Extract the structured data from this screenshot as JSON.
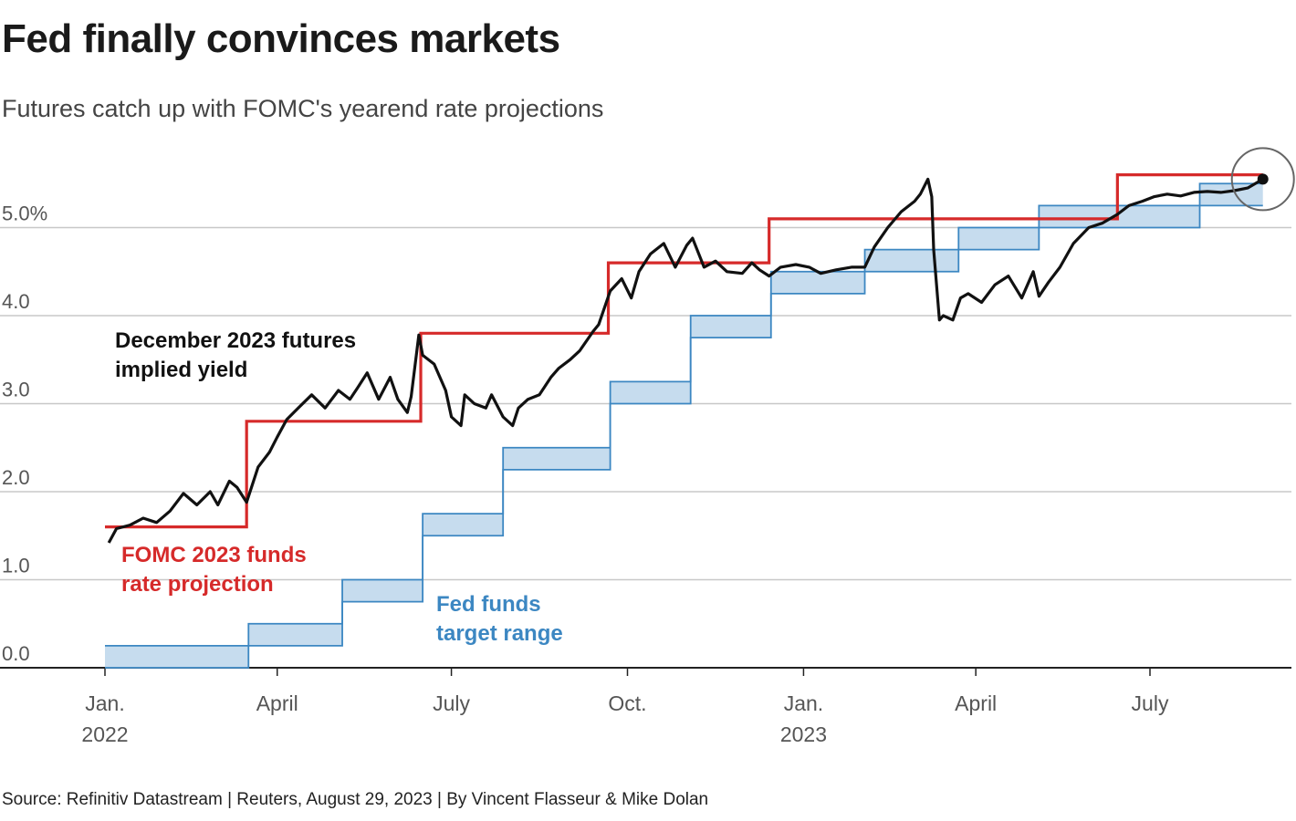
{
  "title": "Fed finally convinces markets",
  "subtitle": "Futures catch up with FOMC's yearend rate projections",
  "source": "Source: Refinitiv Datastream | Reuters, August 29, 2023 | By Vincent Flasseur & Mike Dolan",
  "colors": {
    "futures": "#111111",
    "projection": "#d62a2a",
    "target_range_line": "#3c87c2",
    "target_range_fill": "#c6dcee",
    "grid": "#c8c8c8"
  },
  "chart_data": {
    "type": "line",
    "x_axis": {
      "ticks": [
        {
          "date": "2022-01-01",
          "label": "Jan.",
          "label2": "2022"
        },
        {
          "date": "2022-04-01",
          "label": "April",
          "label2": ""
        },
        {
          "date": "2022-07-01",
          "label": "July",
          "label2": ""
        },
        {
          "date": "2022-10-01",
          "label": "Oct.",
          "label2": ""
        },
        {
          "date": "2023-01-01",
          "label": "Jan.",
          "label2": "2023"
        },
        {
          "date": "2023-04-01",
          "label": "April",
          "label2": ""
        },
        {
          "date": "2023-07-01",
          "label": "July",
          "label2": ""
        }
      ],
      "range": [
        "2021-12-31",
        "2023-09-30"
      ]
    },
    "y_axis": {
      "ticks": [
        0,
        1,
        2,
        3,
        4,
        5
      ],
      "tick_labels": [
        "0.0",
        "1.0",
        "2.0",
        "3.0",
        "4.0",
        "5.0%"
      ],
      "range": [
        0,
        5.9
      ],
      "grid": true
    },
    "series": [
      {
        "name": "FOMC 2023 funds rate projection",
        "label_lines": [
          "FOMC 2023 funds",
          "rate projection"
        ],
        "style": "step",
        "points": [
          [
            "2022-01-01",
            1.6
          ],
          [
            "2022-03-16",
            2.8
          ],
          [
            "2022-06-15",
            3.8
          ],
          [
            "2022-09-21",
            4.6
          ],
          [
            "2022-12-14",
            5.1
          ],
          [
            "2023-06-14",
            5.6
          ],
          [
            "2023-08-29",
            5.6
          ]
        ]
      },
      {
        "name": "Fed funds target range",
        "label_lines": [
          "Fed funds",
          "target range"
        ],
        "style": "band-step",
        "points": [
          [
            "2022-01-01",
            0.0,
            0.25
          ],
          [
            "2022-03-17",
            0.25,
            0.5
          ],
          [
            "2022-05-05",
            0.75,
            1.0
          ],
          [
            "2022-06-16",
            1.5,
            1.75
          ],
          [
            "2022-07-28",
            2.25,
            2.5
          ],
          [
            "2022-09-22",
            3.0,
            3.25
          ],
          [
            "2022-11-03",
            3.75,
            4.0
          ],
          [
            "2022-12-15",
            4.25,
            4.5
          ],
          [
            "2023-02-02",
            4.5,
            4.75
          ],
          [
            "2023-03-23",
            4.75,
            5.0
          ],
          [
            "2023-05-04",
            5.0,
            5.25
          ],
          [
            "2023-07-27",
            5.25,
            5.5
          ],
          [
            "2023-08-29",
            5.25,
            5.5
          ]
        ]
      },
      {
        "name": "December 2023 futures implied yield",
        "label_lines": [
          "December 2023 futures",
          "implied yield"
        ],
        "style": "line",
        "points": [
          [
            "2022-01-03",
            1.42
          ],
          [
            "2022-01-07",
            1.58
          ],
          [
            "2022-01-14",
            1.62
          ],
          [
            "2022-01-21",
            1.7
          ],
          [
            "2022-01-28",
            1.65
          ],
          [
            "2022-02-04",
            1.78
          ],
          [
            "2022-02-11",
            1.98
          ],
          [
            "2022-02-18",
            1.85
          ],
          [
            "2022-02-25",
            2.0
          ],
          [
            "2022-03-01",
            1.85
          ],
          [
            "2022-03-07",
            2.12
          ],
          [
            "2022-03-11",
            2.05
          ],
          [
            "2022-03-16",
            1.88
          ],
          [
            "2022-03-22",
            2.28
          ],
          [
            "2022-03-28",
            2.45
          ],
          [
            "2022-04-01",
            2.62
          ],
          [
            "2022-04-06",
            2.82
          ],
          [
            "2022-04-12",
            2.95
          ],
          [
            "2022-04-19",
            3.1
          ],
          [
            "2022-04-26",
            2.95
          ],
          [
            "2022-05-03",
            3.15
          ],
          [
            "2022-05-09",
            3.05
          ],
          [
            "2022-05-13",
            3.18
          ],
          [
            "2022-05-18",
            3.35
          ],
          [
            "2022-05-24",
            3.05
          ],
          [
            "2022-05-30",
            3.3
          ],
          [
            "2022-06-03",
            3.05
          ],
          [
            "2022-06-08",
            2.9
          ],
          [
            "2022-06-10",
            3.08
          ],
          [
            "2022-06-14",
            3.78
          ],
          [
            "2022-06-16",
            3.55
          ],
          [
            "2022-06-22",
            3.45
          ],
          [
            "2022-06-28",
            3.15
          ],
          [
            "2022-07-01",
            2.85
          ],
          [
            "2022-07-06",
            2.75
          ],
          [
            "2022-07-08",
            3.1
          ],
          [
            "2022-07-13",
            3.0
          ],
          [
            "2022-07-19",
            2.95
          ],
          [
            "2022-07-22",
            3.1
          ],
          [
            "2022-07-28",
            2.85
          ],
          [
            "2022-08-02",
            2.75
          ],
          [
            "2022-08-05",
            2.95
          ],
          [
            "2022-08-10",
            3.05
          ],
          [
            "2022-08-16",
            3.1
          ],
          [
            "2022-08-22",
            3.3
          ],
          [
            "2022-08-26",
            3.4
          ],
          [
            "2022-09-01",
            3.5
          ],
          [
            "2022-09-06",
            3.6
          ],
          [
            "2022-09-13",
            3.82
          ],
          [
            "2022-09-16",
            3.9
          ],
          [
            "2022-09-22",
            4.28
          ],
          [
            "2022-09-28",
            4.42
          ],
          [
            "2022-10-03",
            4.2
          ],
          [
            "2022-10-07",
            4.5
          ],
          [
            "2022-10-13",
            4.7
          ],
          [
            "2022-10-20",
            4.82
          ],
          [
            "2022-10-26",
            4.55
          ],
          [
            "2022-11-01",
            4.8
          ],
          [
            "2022-11-04",
            4.88
          ],
          [
            "2022-11-10",
            4.55
          ],
          [
            "2022-11-16",
            4.62
          ],
          [
            "2022-11-22",
            4.5
          ],
          [
            "2022-11-30",
            4.48
          ],
          [
            "2022-12-05",
            4.6
          ],
          [
            "2022-12-09",
            4.52
          ],
          [
            "2022-12-14",
            4.45
          ],
          [
            "2022-12-20",
            4.55
          ],
          [
            "2022-12-28",
            4.58
          ],
          [
            "2023-01-04",
            4.55
          ],
          [
            "2023-01-10",
            4.48
          ],
          [
            "2023-01-18",
            4.52
          ],
          [
            "2023-01-26",
            4.55
          ],
          [
            "2023-02-02",
            4.55
          ],
          [
            "2023-02-07",
            4.78
          ],
          [
            "2023-02-14",
            5.0
          ],
          [
            "2023-02-21",
            5.18
          ],
          [
            "2023-02-28",
            5.3
          ],
          [
            "2023-03-03",
            5.38
          ],
          [
            "2023-03-07",
            5.55
          ],
          [
            "2023-03-09",
            5.35
          ],
          [
            "2023-03-10",
            4.75
          ],
          [
            "2023-03-13",
            3.95
          ],
          [
            "2023-03-15",
            4.0
          ],
          [
            "2023-03-20",
            3.95
          ],
          [
            "2023-03-24",
            4.2
          ],
          [
            "2023-03-28",
            4.25
          ],
          [
            "2023-04-04",
            4.15
          ],
          [
            "2023-04-11",
            4.35
          ],
          [
            "2023-04-18",
            4.45
          ],
          [
            "2023-04-25",
            4.2
          ],
          [
            "2023-05-01",
            4.5
          ],
          [
            "2023-05-04",
            4.22
          ],
          [
            "2023-05-09",
            4.38
          ],
          [
            "2023-05-15",
            4.55
          ],
          [
            "2023-05-22",
            4.82
          ],
          [
            "2023-05-30",
            5.0
          ],
          [
            "2023-06-06",
            5.05
          ],
          [
            "2023-06-14",
            5.15
          ],
          [
            "2023-06-20",
            5.25
          ],
          [
            "2023-06-27",
            5.3
          ],
          [
            "2023-07-03",
            5.35
          ],
          [
            "2023-07-10",
            5.38
          ],
          [
            "2023-07-17",
            5.36
          ],
          [
            "2023-07-24",
            5.4
          ],
          [
            "2023-07-31",
            5.41
          ],
          [
            "2023-08-07",
            5.4
          ],
          [
            "2023-08-14",
            5.42
          ],
          [
            "2023-08-21",
            5.45
          ],
          [
            "2023-08-29",
            5.55
          ]
        ]
      }
    ],
    "highlight": {
      "date": "2023-08-29",
      "value": 5.55
    }
  }
}
